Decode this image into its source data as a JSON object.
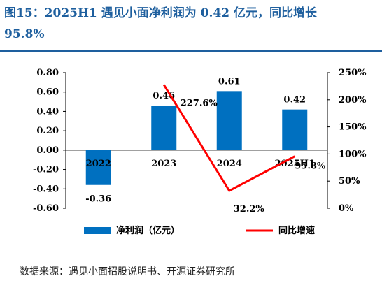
{
  "title": {
    "line1": "图15：2025H1 遇见小面净利润为 0.42 亿元，同比增长",
    "line2": "95.8%"
  },
  "source": "数据来源：遇见小面招股说明书、开源证券研究所",
  "colors": {
    "bar": "#0070c0",
    "line": "#ff0000",
    "title": "#1e5f9e"
  },
  "chart_data": {
    "type": "bar+line",
    "categories": [
      "2022",
      "2023",
      "2024",
      "2025H1"
    ],
    "series": [
      {
        "name": "净利润（亿元）",
        "type": "bar",
        "axis": "left",
        "values": [
          -0.36,
          0.46,
          0.61,
          0.42
        ],
        "labels": [
          "-0.36",
          "0.46",
          "0.61",
          "0.42"
        ]
      },
      {
        "name": "同比增速",
        "type": "line",
        "axis": "right",
        "values": [
          null,
          227.6,
          32.2,
          95.8
        ],
        "labels": [
          "",
          "227.6%",
          "32.2%",
          "95.8%"
        ]
      }
    ],
    "y_left": {
      "min": -0.6,
      "max": 0.8,
      "step": 0.2,
      "ticks": [
        "0.80",
        "0.60",
        "0.40",
        "0.20",
        "0.00",
        "-0.20",
        "-0.40",
        "-0.60"
      ]
    },
    "y_right": {
      "min": 0,
      "max": 250,
      "step": 50,
      "ticks": [
        "250%",
        "200%",
        "150%",
        "100%",
        "50%",
        "0%"
      ]
    },
    "grid": false,
    "legend": "bottom"
  }
}
